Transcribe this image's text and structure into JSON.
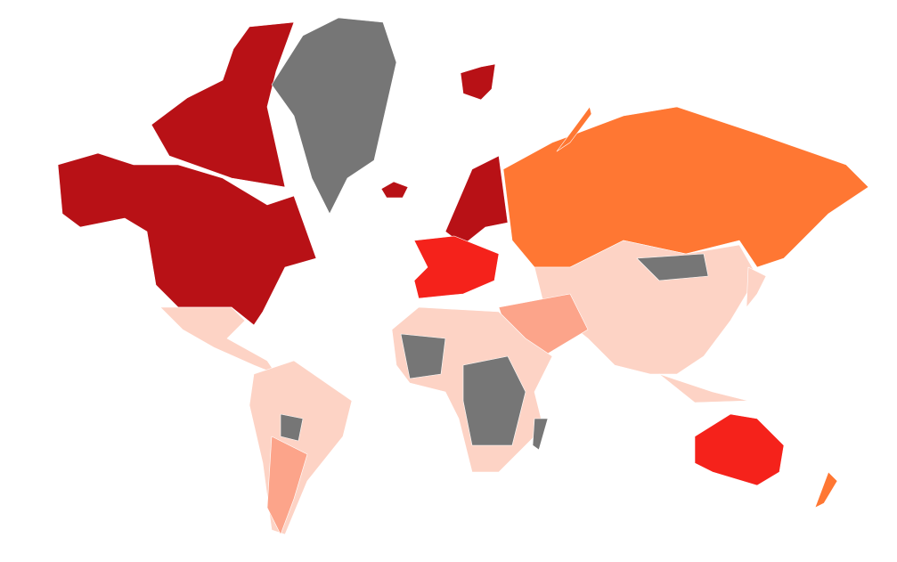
{
  "map": {
    "colors": [
      "#b81116",
      "#767676",
      "#ff7733",
      "#fdd3c5",
      "#fca48a",
      "#f5221b"
    ]
  }
}
